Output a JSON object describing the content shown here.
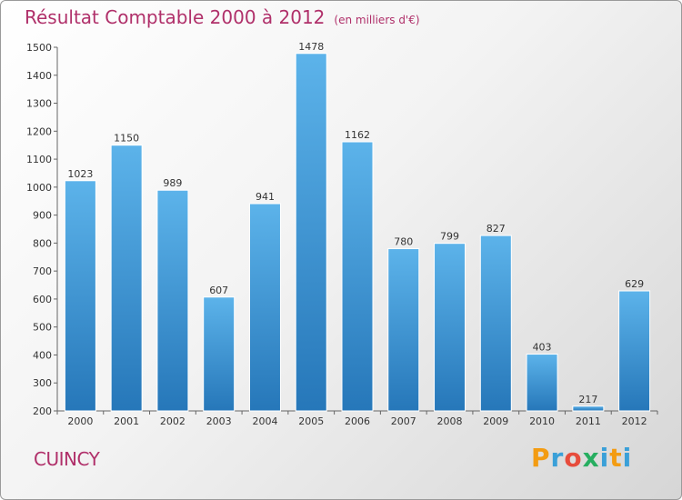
{
  "chart_data": {
    "type": "bar",
    "title": "Résultat Comptable 2000 à 2012",
    "subtitle": "(en milliers d'€)",
    "categories": [
      "2000",
      "2001",
      "2002",
      "2003",
      "2004",
      "2005",
      "2006",
      "2007",
      "2008",
      "2009",
      "2010",
      "2011",
      "2012"
    ],
    "values": [
      1023,
      1150,
      989,
      607,
      941,
      1478,
      1162,
      780,
      799,
      827,
      403,
      217,
      629
    ],
    "ylim": [
      200,
      1500
    ],
    "yticks": [
      200,
      300,
      400,
      500,
      600,
      700,
      800,
      900,
      1000,
      1100,
      1200,
      1300,
      1400,
      1500
    ],
    "xlabel": "",
    "ylabel": "",
    "grid": false
  },
  "footer": {
    "city": "CUINCY",
    "logo_letters": [
      {
        "ch": "P",
        "color": "#f39c12"
      },
      {
        "ch": "r",
        "color": "#3aa0d8"
      },
      {
        "ch": "o",
        "color": "#e74c3c"
      },
      {
        "ch": "x",
        "color": "#27ae60"
      },
      {
        "ch": "i",
        "color": "#3aa0d8"
      },
      {
        "ch": "t",
        "color": "#f39c12"
      },
      {
        "ch": "i",
        "color": "#3aa0d8"
      }
    ]
  },
  "colors": {
    "bar_light": "#5cb3ea",
    "bar_dark": "#2677b9",
    "accent": "#b0306a"
  }
}
